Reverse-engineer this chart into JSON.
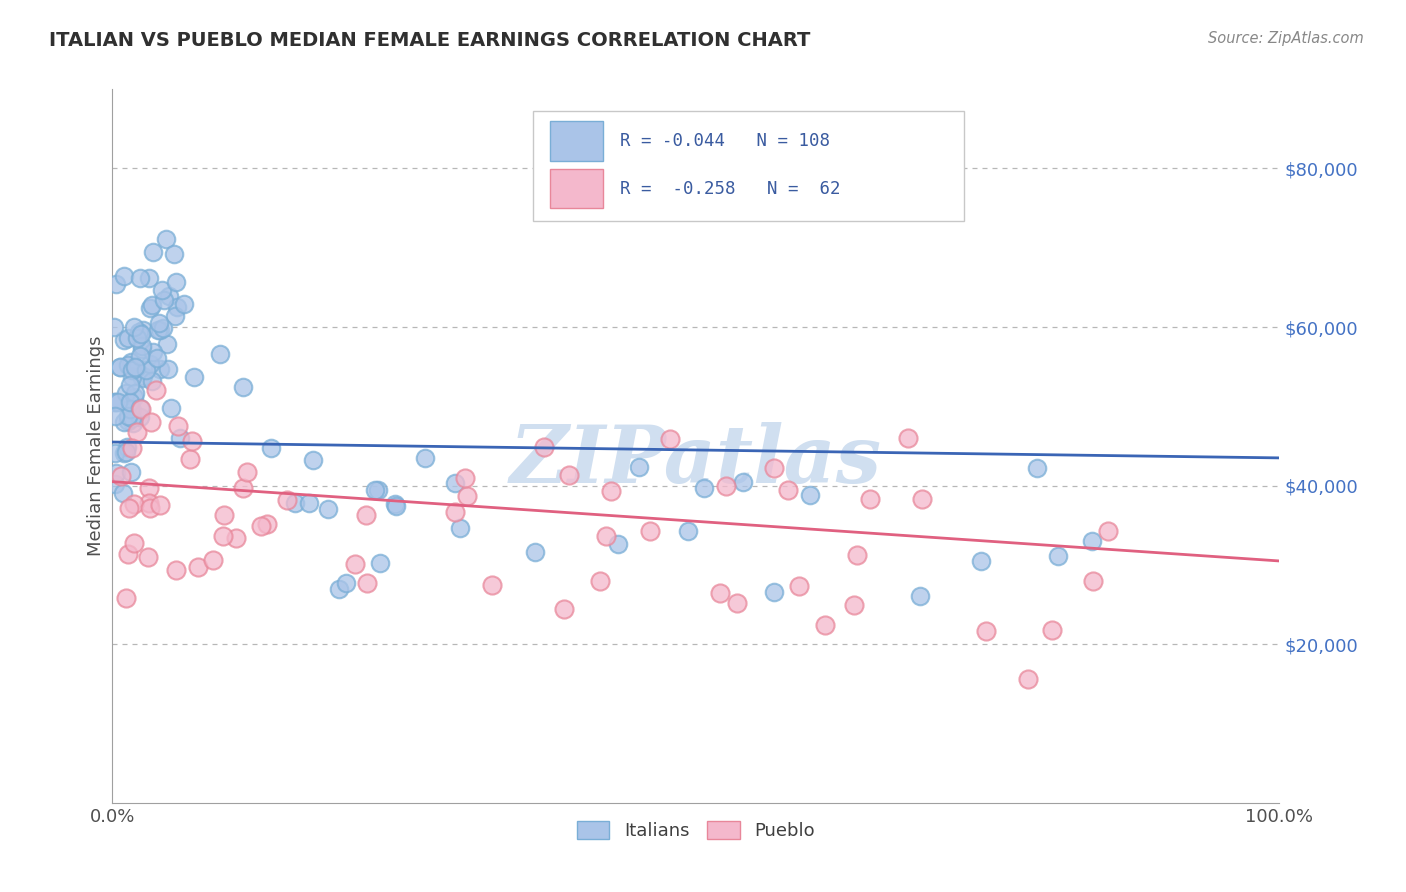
{
  "title": "ITALIAN VS PUEBLO MEDIAN FEMALE EARNINGS CORRELATION CHART",
  "source": "Source: ZipAtlas.com",
  "ylabel": "Median Female Earnings",
  "xlim": [
    0,
    1.0
  ],
  "ylim": [
    0,
    90000
  ],
  "xtick_labels": [
    "0.0%",
    "100.0%"
  ],
  "ytick_values": [
    20000,
    40000,
    60000,
    80000
  ],
  "ytick_labels": [
    "$20,000",
    "$40,000",
    "$60,000",
    "$80,000"
  ],
  "italians_R": -0.044,
  "italians_N": 108,
  "pueblo_R": -0.258,
  "pueblo_N": 62,
  "scatter_italian_fill": "#aac4e8",
  "scatter_italian_edge": "#7aaed6",
  "scatter_pueblo_fill": "#f4b8cc",
  "scatter_pueblo_edge": "#e8879a",
  "trendline_italian_color": "#3a65b5",
  "trendline_pueblo_color": "#e06080",
  "watermark": "ZIPatlas",
  "watermark_color": "#d0dff0",
  "background_color": "#ffffff",
  "grid_color": "#b0b0b0",
  "title_color": "#303030",
  "ylabel_color": "#505050",
  "ytick_color": "#4472c4",
  "xtick_color": "#505050",
  "legend_text_color": "#3a5ba0",
  "legend_border_color": "#c8c8c8"
}
